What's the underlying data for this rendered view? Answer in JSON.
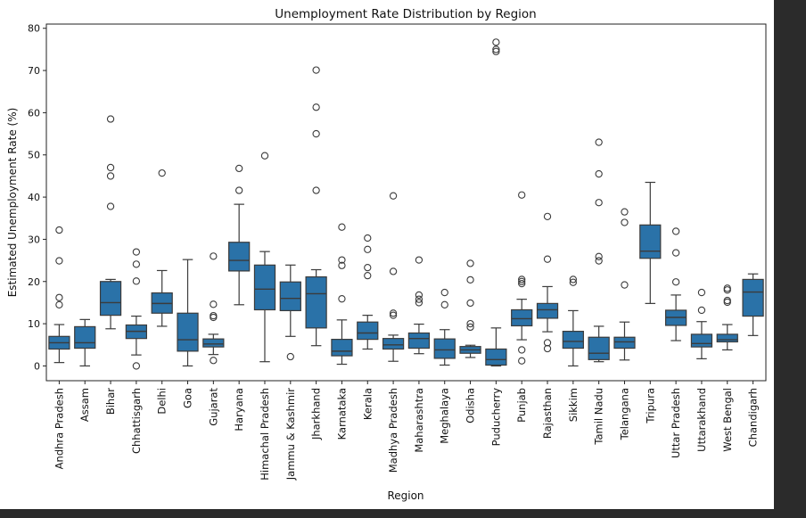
{
  "chart_data": {
    "type": "box",
    "title": "Unemployment Rate Distribution by Region",
    "xlabel": "Region",
    "ylabel": "Estimated Unemployment Rate (%)",
    "ylim": [
      -3.5,
      81
    ],
    "yticks": [
      0,
      10,
      20,
      30,
      40,
      50,
      60,
      70,
      80
    ],
    "box_color": "#2a72a8",
    "categories": [
      {
        "name": "Andhra Pradesh",
        "whisker_low": 0.8,
        "q1": 4.0,
        "median": 5.5,
        "q3": 7.0,
        "whisker_high": 9.8,
        "outliers": [
          32.2,
          24.9,
          16.2,
          14.5
        ]
      },
      {
        "name": "Assam",
        "whisker_low": 0.0,
        "q1": 4.2,
        "median": 5.5,
        "q3": 9.3,
        "whisker_high": 11.0,
        "outliers": []
      },
      {
        "name": "Bihar",
        "whisker_low": 8.8,
        "q1": 12.0,
        "median": 15.0,
        "q3": 20.0,
        "whisker_high": 20.5,
        "outliers": [
          58.5,
          47.0,
          45.0,
          37.8
        ]
      },
      {
        "name": "Chhattisgarh",
        "whisker_low": 2.6,
        "q1": 6.5,
        "median": 8.2,
        "q3": 9.7,
        "whisker_high": 11.8,
        "outliers": [
          27.0,
          24.1,
          20.1,
          0.0
        ]
      },
      {
        "name": "Delhi",
        "whisker_low": 9.4,
        "q1": 12.5,
        "median": 14.8,
        "q3": 17.3,
        "whisker_high": 22.6,
        "outliers": [
          45.7
        ]
      },
      {
        "name": "Goa",
        "whisker_low": 0.0,
        "q1": 3.5,
        "median": 6.2,
        "q3": 12.5,
        "whisker_high": 25.2,
        "outliers": []
      },
      {
        "name": "Gujarat",
        "whisker_low": 2.7,
        "q1": 4.5,
        "median": 5.2,
        "q3": 6.4,
        "whisker_high": 7.5,
        "outliers": [
          26.0,
          14.6,
          11.9,
          11.5,
          1.3
        ]
      },
      {
        "name": "Haryana",
        "whisker_low": 14.5,
        "q1": 22.5,
        "median": 25.0,
        "q3": 29.3,
        "whisker_high": 38.3,
        "outliers": [
          46.8,
          41.6
        ]
      },
      {
        "name": "Himachal Pradesh",
        "whisker_low": 1.0,
        "q1": 13.3,
        "median": 18.2,
        "q3": 23.9,
        "whisker_high": 27.1,
        "outliers": [
          49.8
        ]
      },
      {
        "name": "Jammu & Kashmir",
        "whisker_low": 7.0,
        "q1": 13.1,
        "median": 16.0,
        "q3": 19.9,
        "whisker_high": 23.9,
        "outliers": [
          2.2
        ]
      },
      {
        "name": "Jharkhand",
        "whisker_low": 4.8,
        "q1": 9.0,
        "median": 17.1,
        "q3": 21.1,
        "whisker_high": 22.8,
        "outliers": [
          70.1,
          61.3,
          55.0,
          41.6
        ]
      },
      {
        "name": "Karnataka",
        "whisker_low": 0.4,
        "q1": 2.4,
        "median": 3.5,
        "q3": 6.3,
        "whisker_high": 10.9,
        "outliers": [
          32.9,
          25.1,
          23.8,
          15.9
        ]
      },
      {
        "name": "Kerala",
        "whisker_low": 4.0,
        "q1": 6.3,
        "median": 7.8,
        "q3": 10.4,
        "whisker_high": 12.0,
        "outliers": [
          30.3,
          27.6,
          23.3,
          21.4
        ]
      },
      {
        "name": "Madhya Pradesh",
        "whisker_low": 1.1,
        "q1": 4.0,
        "median": 5.0,
        "q3": 6.5,
        "whisker_high": 7.3,
        "outliers": [
          40.3,
          22.4,
          12.5,
          12.0
        ]
      },
      {
        "name": "Maharashtra",
        "whisker_low": 2.9,
        "q1": 4.2,
        "median": 6.5,
        "q3": 7.8,
        "whisker_high": 9.9,
        "outliers": [
          25.1,
          16.8,
          15.8,
          15.0
        ]
      },
      {
        "name": "Meghalaya",
        "whisker_low": 0.2,
        "q1": 1.8,
        "median": 3.8,
        "q3": 6.4,
        "whisker_high": 8.6,
        "outliers": [
          17.4,
          14.5
        ]
      },
      {
        "name": "Odisha",
        "whisker_low": 2.0,
        "q1": 3.0,
        "median": 3.8,
        "q3": 4.6,
        "whisker_high": 4.9,
        "outliers": [
          24.3,
          20.4,
          14.9,
          10.0,
          9.2
        ]
      },
      {
        "name": "Puducherry",
        "whisker_low": 0.0,
        "q1": 0.2,
        "median": 1.5,
        "q3": 4.0,
        "whisker_high": 9.0,
        "outliers": [
          76.7,
          75.0,
          74.5
        ]
      },
      {
        "name": "Punjab",
        "whisker_low": 6.2,
        "q1": 9.5,
        "median": 11.2,
        "q3": 13.3,
        "whisker_high": 15.8,
        "outliers": [
          40.5,
          20.5,
          20.0,
          19.5,
          3.8,
          1.2
        ]
      },
      {
        "name": "Rajasthan",
        "whisker_low": 8.1,
        "q1": 11.3,
        "median": 13.3,
        "q3": 14.8,
        "whisker_high": 18.8,
        "outliers": [
          35.4,
          25.3,
          5.5,
          4.1
        ]
      },
      {
        "name": "Sikkim",
        "whisker_low": 0.0,
        "q1": 4.2,
        "median": 5.8,
        "q3": 8.2,
        "whisker_high": 13.1,
        "outliers": [
          20.5,
          19.8
        ]
      },
      {
        "name": "Tamil Nadu",
        "whisker_low": 1.0,
        "q1": 1.5,
        "median": 3.0,
        "q3": 6.8,
        "whisker_high": 9.4,
        "outliers": [
          53.0,
          45.5,
          38.7,
          25.9,
          24.9
        ]
      },
      {
        "name": "Telangana",
        "whisker_low": 1.4,
        "q1": 4.2,
        "median": 5.7,
        "q3": 6.8,
        "whisker_high": 10.4,
        "outliers": [
          36.5,
          34.0,
          19.2
        ]
      },
      {
        "name": "Tripura",
        "whisker_low": 14.8,
        "q1": 25.5,
        "median": 27.2,
        "q3": 33.4,
        "whisker_high": 43.5,
        "outliers": []
      },
      {
        "name": "Uttar Pradesh",
        "whisker_low": 6.0,
        "q1": 9.6,
        "median": 11.5,
        "q3": 13.2,
        "whisker_high": 16.8,
        "outliers": [
          31.9,
          26.8,
          19.9
        ]
      },
      {
        "name": "Uttarakhand",
        "whisker_low": 1.7,
        "q1": 4.5,
        "median": 5.3,
        "q3": 7.5,
        "whisker_high": 10.5,
        "outliers": [
          17.4,
          13.2
        ]
      },
      {
        "name": "West Bengal",
        "whisker_low": 3.8,
        "q1": 5.7,
        "median": 6.2,
        "q3": 7.5,
        "whisker_high": 9.8,
        "outliers": [
          18.4,
          18.0,
          15.5,
          15.1
        ]
      },
      {
        "name": "Chandigarh",
        "whisker_low": 7.2,
        "q1": 11.8,
        "median": 17.5,
        "q3": 20.5,
        "whisker_high": 21.8,
        "outliers": []
      }
    ]
  }
}
